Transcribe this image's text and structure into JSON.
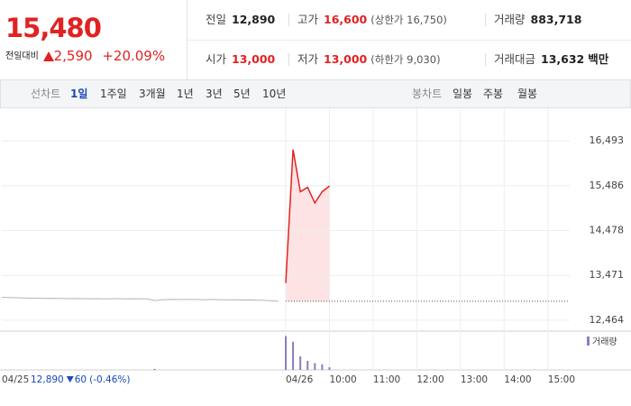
{
  "quote": {
    "price": "15,480",
    "change_label": "전일대비",
    "change": "2,590",
    "change_pct": "+20.09%"
  },
  "stats": [
    {
      "label": "전일",
      "value": "12,890",
      "color": "#222222"
    },
    {
      "label": "고가",
      "value": "16,600",
      "note": "(상한가 16,750)",
      "color": "#e12222"
    },
    {
      "label": "거래량",
      "value": "883,718",
      "color": "#222222"
    },
    {
      "label": "시가",
      "value": "13,000",
      "color": "#e12222"
    },
    {
      "label": "저가",
      "value": "13,000",
      "note": "(하한가 9,030)",
      "color": "#e12222"
    },
    {
      "label": "거래대금",
      "value": "13,632",
      "unit": "백만",
      "color": "#222222"
    }
  ],
  "tabs": {
    "line_label": "선차트",
    "line": [
      "1일",
      "1주일",
      "3개월",
      "1년",
      "3년",
      "5년",
      "10년"
    ],
    "active": 0,
    "candle_label": "봉차트",
    "candle": [
      "일봉",
      "주봉",
      "월봉"
    ]
  },
  "prev_day": {
    "close": "12,890",
    "change": "60",
    "change_pct": "(-0.46%)"
  },
  "chart_data": [
    {
      "type": "line",
      "categories": [
        "04/25",
        null,
        null,
        null,
        null,
        null,
        null,
        null,
        null,
        null,
        null,
        null,
        null,
        null,
        null,
        null,
        null,
        null,
        null,
        null,
        null,
        null,
        null,
        null,
        null,
        null,
        null,
        null,
        null,
        null,
        null,
        null,
        null,
        null,
        null,
        null,
        null,
        null,
        null,
        "04/26",
        null,
        null,
        null,
        null,
        null,
        "10:00",
        null,
        null,
        null,
        null,
        null,
        "11:00",
        null,
        null,
        null,
        null,
        null,
        "12:00",
        null,
        null,
        null,
        null,
        null,
        "13:00",
        null,
        null,
        null,
        null,
        null,
        "14:00",
        null,
        null,
        null,
        null,
        null,
        "15:00",
        null,
        null,
        null
      ],
      "series": [
        {
          "color": "#b4b4b4",
          "values": [
            12980,
            12975,
            12970,
            12965,
            12960,
            12960,
            12955,
            12958,
            12955,
            12950,
            12952,
            12950,
            12948,
            12950,
            12945,
            12948,
            12950,
            12945,
            12948,
            12945,
            12942,
            12905,
            12925,
            12930,
            12928,
            12930,
            12930,
            12928,
            12925,
            12930,
            12925,
            12920,
            12922,
            12918,
            12920,
            12915,
            12910,
            12905,
            12890,
            null,
            null,
            null,
            null,
            null,
            null,
            null,
            null,
            null,
            null,
            null,
            null,
            null,
            null,
            null,
            null,
            null,
            null,
            null,
            null,
            null,
            null,
            null,
            null,
            null,
            null,
            null,
            null,
            null,
            null,
            null,
            null,
            null,
            null,
            null,
            null,
            null,
            null,
            null,
            null
          ]
        },
        {
          "color": "#e12222",
          "values": [
            null,
            null,
            null,
            null,
            null,
            null,
            null,
            null,
            null,
            null,
            null,
            null,
            null,
            null,
            null,
            null,
            null,
            null,
            null,
            null,
            null,
            null,
            null,
            null,
            null,
            null,
            null,
            null,
            null,
            null,
            null,
            null,
            null,
            null,
            null,
            null,
            null,
            null,
            null,
            13300,
            16300,
            15350,
            15450,
            15100,
            15350,
            15480,
            null,
            null,
            null,
            null,
            null,
            null,
            null,
            null,
            null,
            null,
            null,
            null,
            null,
            null,
            null,
            null,
            null,
            null,
            null,
            null,
            null,
            null,
            null,
            null,
            null,
            null,
            null,
            null,
            null,
            null,
            null,
            null,
            null
          ]
        }
      ],
      "fill": "#fde3e3",
      "reference": 12890,
      "ylim": [
        12260,
        16820
      ],
      "yticks": [
        {
          "value": 12464,
          "label": "12,464"
        },
        {
          "value": 13471,
          "label": "13,471"
        },
        {
          "value": 14478,
          "label": "14,478"
        },
        {
          "value": 15486,
          "label": "15,486"
        },
        {
          "value": 16493,
          "label": "16,493"
        }
      ],
      "grid": true
    },
    {
      "type": "bar",
      "legend": "거래량",
      "color": "#8e7cc3",
      "ylim": [
        0,
        320000
      ],
      "values": [
        null,
        null,
        null,
        null,
        null,
        null,
        null,
        null,
        null,
        null,
        null,
        null,
        null,
        null,
        null,
        null,
        null,
        null,
        null,
        null,
        null,
        9000,
        null,
        null,
        null,
        null,
        null,
        null,
        null,
        null,
        null,
        null,
        null,
        null,
        null,
        null,
        null,
        null,
        null,
        300000,
        250000,
        120000,
        80000,
        60000,
        50000,
        23718,
        null,
        null,
        null,
        null,
        null,
        null,
        null,
        null,
        null,
        null,
        null,
        null,
        null,
        null,
        null,
        null,
        null,
        null,
        null,
        null,
        null,
        null,
        null,
        null,
        null,
        null,
        null,
        null,
        null,
        null,
        null,
        null,
        null
      ]
    }
  ]
}
